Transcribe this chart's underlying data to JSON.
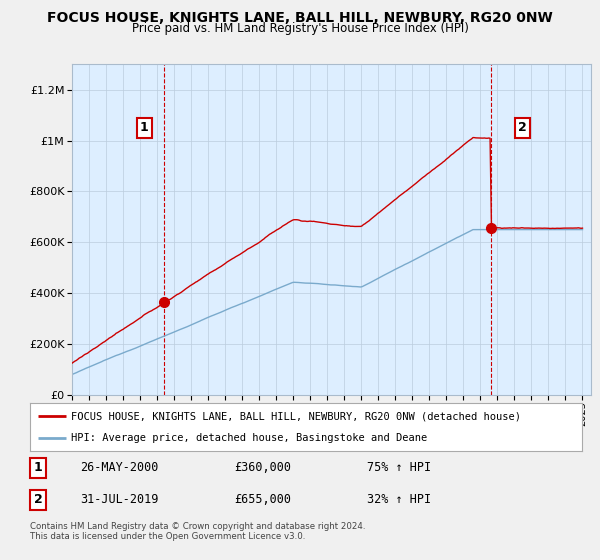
{
  "title": "FOCUS HOUSE, KNIGHTS LANE, BALL HILL, NEWBURY, RG20 0NW",
  "subtitle": "Price paid vs. HM Land Registry's House Price Index (HPI)",
  "legend_line1": "FOCUS HOUSE, KNIGHTS LANE, BALL HILL, NEWBURY, RG20 0NW (detached house)",
  "legend_line2": "HPI: Average price, detached house, Basingstoke and Deane",
  "transaction1_date": "26-MAY-2000",
  "transaction1_price": "£360,000",
  "transaction1_hpi": "75% ↑ HPI",
  "transaction1_year": 2000.4,
  "transaction2_date": "31-JUL-2019",
  "transaction2_price": "£655,000",
  "transaction2_hpi": "32% ↑ HPI",
  "transaction2_year": 2019.58,
  "footer": "Contains HM Land Registry data © Crown copyright and database right 2024.\nThis data is licensed under the Open Government Licence v3.0.",
  "red_color": "#cc0000",
  "blue_color": "#7aaacc",
  "background_color": "#f0f0f0",
  "plot_background": "#ddeeff",
  "ylim_max": 1300000,
  "yticks": [
    0,
    200000,
    400000,
    600000,
    800000,
    1000000,
    1200000
  ]
}
